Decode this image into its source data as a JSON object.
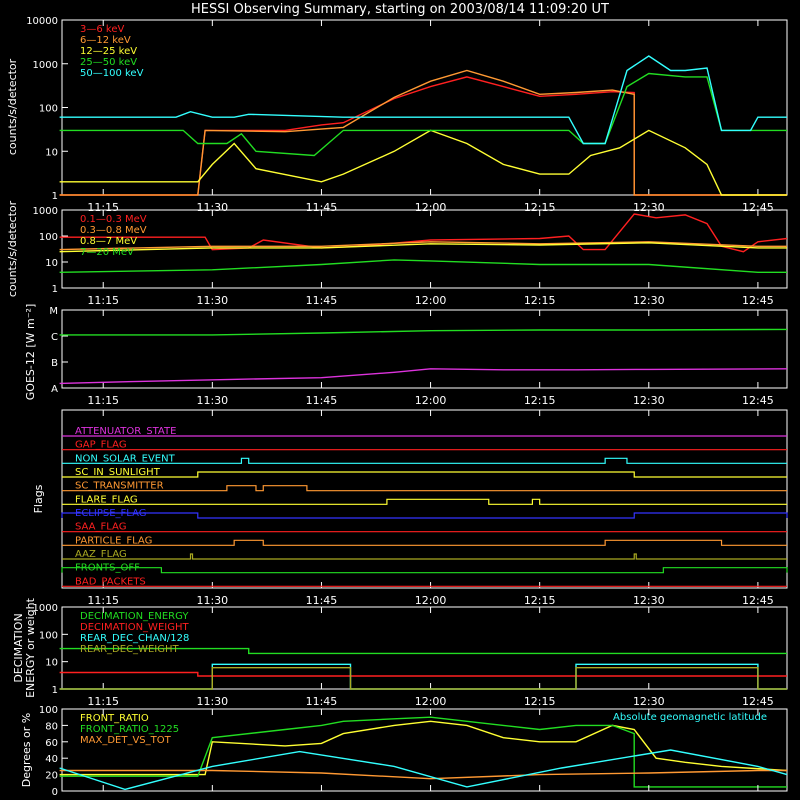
{
  "title": "HESSI Observing Summary, starting on 2003/08/14 11:09:20 UT",
  "x_ticks": [
    "11:15",
    "11:30",
    "11:45",
    "12:00",
    "12:15",
    "12:30",
    "12:45"
  ],
  "colors": {
    "background": "#000000",
    "axes": "#ffffff",
    "red": "#ff2020",
    "orange": "#ff9933",
    "yellow": "#ffff33",
    "green": "#22dd22",
    "cyan": "#33ffff",
    "magenta": "#dd33dd",
    "blue": "#3333ff",
    "olive": "#aaaa22",
    "brown": "#cc7722"
  },
  "chart_data": [
    {
      "id": "counts_lo",
      "type": "line",
      "ylabel": "counts/s/detector",
      "yscale": "log",
      "ylim": [
        1,
        10000
      ],
      "yticks": [
        "1",
        "10",
        "100",
        "1000",
        "10000"
      ],
      "xlim": [
        "11:09:20",
        "12:49:00"
      ],
      "series": [
        {
          "name": "3—6 keV",
          "color": "#ff2020",
          "x": [
            "11:09",
            "11:28",
            "11:29",
            "11:40",
            "11:45",
            "11:48",
            "11:55",
            "12:00",
            "12:05",
            "12:10",
            "12:15",
            "12:20",
            "12:25",
            "12:28",
            "12:28",
            "12:49"
          ],
          "values": [
            1,
            1,
            30,
            30,
            40,
            45,
            160,
            300,
            500,
            300,
            180,
            200,
            230,
            220,
            1,
            1
          ]
        },
        {
          "name": "6—12 keV",
          "color": "#ff9933",
          "x": [
            "11:09",
            "11:28",
            "11:29",
            "11:40",
            "11:48",
            "11:55",
            "12:00",
            "12:05",
            "12:10",
            "12:15",
            "12:20",
            "12:25",
            "12:28",
            "12:28",
            "12:49"
          ],
          "values": [
            1,
            1,
            30,
            28,
            35,
            170,
            400,
            700,
            400,
            200,
            220,
            250,
            200,
            1,
            1
          ]
        },
        {
          "name": "12—25 keV",
          "color": "#ffff33",
          "x": [
            "11:09",
            "11:20",
            "11:28",
            "11:30",
            "11:33",
            "11:36",
            "11:45",
            "11:48",
            "11:55",
            "12:00",
            "12:05",
            "12:10",
            "12:15",
            "12:19",
            "12:22",
            "12:26",
            "12:30",
            "12:35",
            "12:38",
            "12:40",
            "12:49"
          ],
          "values": [
            2,
            2,
            2,
            5,
            15,
            4,
            2,
            3,
            10,
            30,
            15,
            5,
            3,
            3,
            8,
            12,
            30,
            12,
            5,
            1,
            1
          ]
        },
        {
          "name": "25—50 keV",
          "color": "#22dd22",
          "x": [
            "11:09",
            "11:26",
            "11:28",
            "11:32",
            "11:34",
            "11:36",
            "11:44",
            "11:48",
            "12:00",
            "12:15",
            "12:19",
            "12:21",
            "12:24",
            "12:27",
            "12:30",
            "12:35",
            "12:38",
            "12:40",
            "12:49"
          ],
          "values": [
            30,
            30,
            15,
            15,
            25,
            10,
            8,
            30,
            30,
            30,
            30,
            15,
            15,
            300,
            600,
            500,
            500,
            30,
            30
          ]
        },
        {
          "name": "50—100 keV",
          "color": "#33ffff",
          "x": [
            "11:09",
            "11:25",
            "11:27",
            "11:30",
            "11:33",
            "11:35",
            "11:48",
            "11:49",
            "12:00",
            "12:15",
            "12:19",
            "12:21",
            "12:24",
            "12:27",
            "12:30",
            "12:33",
            "12:35",
            "12:38",
            "12:40",
            "12:44",
            "12:45",
            "12:49"
          ],
          "values": [
            60,
            60,
            80,
            60,
            60,
            70,
            60,
            60,
            60,
            60,
            60,
            15,
            15,
            700,
            1500,
            700,
            700,
            800,
            30,
            30,
            60,
            60
          ]
        }
      ]
    },
    {
      "id": "counts_hi",
      "type": "line",
      "ylabel": "counts/s/detector",
      "yscale": "log",
      "ylim": [
        1,
        1000
      ],
      "yticks": [
        "1",
        "10",
        "100",
        "1000"
      ],
      "series": [
        {
          "name": "0.1—0.3 MeV",
          "color": "#ff2020",
          "x": [
            "11:09",
            "11:29",
            "11:30",
            "11:35",
            "11:37",
            "11:45",
            "11:50",
            "12:00",
            "12:15",
            "12:19",
            "12:21",
            "12:24",
            "12:28",
            "12:31",
            "12:35",
            "12:38",
            "12:40",
            "12:43",
            "12:45",
            "12:49"
          ],
          "values": [
            90,
            90,
            30,
            35,
            70,
            35,
            40,
            70,
            80,
            100,
            30,
            30,
            700,
            500,
            650,
            300,
            40,
            25,
            60,
            80
          ]
        },
        {
          "name": "0.3—0.8 MeV",
          "color": "#ff9933",
          "x": [
            "11:09",
            "11:30",
            "11:45",
            "12:00",
            "12:15",
            "12:30",
            "12:45",
            "12:49"
          ],
          "values": [
            30,
            40,
            40,
            60,
            50,
            60,
            40,
            40
          ]
        },
        {
          "name": "0.8—7 MeV",
          "color": "#ffff33",
          "x": [
            "11:09",
            "11:30",
            "11:45",
            "12:00",
            "12:15",
            "12:30",
            "12:45",
            "12:49"
          ],
          "values": [
            25,
            35,
            35,
            50,
            45,
            55,
            35,
            35
          ]
        },
        {
          "name": "7—20 MeV",
          "color": "#22dd22",
          "x": [
            "11:09",
            "11:30",
            "11:45",
            "11:55",
            "12:00",
            "12:15",
            "12:30",
            "12:45",
            "12:49"
          ],
          "values": [
            4,
            5,
            8,
            12,
            11,
            8,
            8,
            4,
            4
          ]
        }
      ]
    },
    {
      "id": "goes",
      "type": "line",
      "ylabel": "GOES-12 [W m⁻²]",
      "yscale": "log",
      "ylim": [
        1e-08,
        1e-05
      ],
      "yticks": [
        "A",
        "B",
        "C",
        "M"
      ],
      "series": [
        {
          "name": "",
          "color": "#22dd22",
          "x": [
            "11:09",
            "11:30",
            "11:45",
            "12:00",
            "12:15",
            "12:30",
            "12:49"
          ],
          "values": [
            1.1e-06,
            1.1e-06,
            1.3e-06,
            1.6e-06,
            1.7e-06,
            1.7e-06,
            1.8e-06
          ]
        },
        {
          "name": "",
          "color": "#dd33dd",
          "x": [
            "11:09",
            "11:20",
            "11:35",
            "11:45",
            "11:55",
            "12:00",
            "12:10",
            "12:20",
            "12:30",
            "12:49"
          ],
          "values": [
            1.5e-08,
            1.8e-08,
            2.2e-08,
            2.5e-08,
            4e-08,
            5.5e-08,
            5e-08,
            5e-08,
            5.2e-08,
            5.5e-08
          ]
        }
      ]
    },
    {
      "id": "flags",
      "type": "line",
      "ylabel": "Flags",
      "series": [
        {
          "name": "ATTENUATOR_STATE",
          "color": "#dd33dd",
          "steps": []
        },
        {
          "name": "GAP_FLAG",
          "color": "#ff2020",
          "steps": []
        },
        {
          "name": "NON_SOLAR_EVENT",
          "color": "#33ffff",
          "steps": [
            [
              "11:34",
              "11:35"
            ],
            [
              "12:24",
              "12:27"
            ]
          ]
        },
        {
          "name": "SC_IN_SUNLIGHT",
          "color": "#ffff33",
          "steps": [
            [
              "11:28",
              "12:28"
            ]
          ]
        },
        {
          "name": "SC_TRANSMITTER",
          "color": "#ff9933",
          "steps": [
            [
              "11:32",
              "11:36"
            ],
            [
              "11:37",
              "11:43"
            ]
          ]
        },
        {
          "name": "FLARE_FLAG",
          "color": "#ffff33",
          "steps": [
            [
              "11:54",
              "12:08"
            ],
            [
              "12:14",
              "12:15"
            ]
          ]
        },
        {
          "name": "ECLIPSE_FLAG",
          "color": "#3333ff",
          "steps": [
            [
              "11:09",
              "11:28"
            ],
            [
              "12:28",
              "12:49"
            ]
          ]
        },
        {
          "name": "SAA_FLAG",
          "color": "#ff2020",
          "steps": []
        },
        {
          "name": "PARTICLE_FLAG",
          "color": "#ff9933",
          "steps": [
            [
              "11:33",
              "11:37"
            ],
            [
              "12:24",
              "12:40"
            ]
          ]
        },
        {
          "name": "AAZ_FLAG",
          "color": "#aaaa22",
          "steps": [
            [
              "11:27",
              "11:27"
            ],
            [
              "12:28",
              "12:28"
            ]
          ]
        },
        {
          "name": "FRONTS_OFF",
          "color": "#22dd22",
          "steps": [
            [
              "11:09",
              "11:23"
            ],
            [
              "12:32",
              "12:49"
            ]
          ]
        },
        {
          "name": "BAD_PACKETS",
          "color": "#ff2020",
          "steps": []
        }
      ]
    },
    {
      "id": "decimation",
      "type": "line",
      "ylabel": "DECIMATION ENERGY or weight",
      "yscale": "log",
      "ylim": [
        1,
        1000
      ],
      "yticks": [
        "1",
        "10",
        "100",
        "1000"
      ],
      "series": [
        {
          "name": "DECIMATION_ENERGY",
          "color": "#22dd22",
          "x": [
            "11:09",
            "11:35",
            "11:35",
            "12:49"
          ],
          "values": [
            30,
            30,
            20,
            20
          ]
        },
        {
          "name": "DECIMATION_WEIGHT",
          "color": "#ff2020",
          "x": [
            "11:09",
            "11:28",
            "11:28",
            "12:49"
          ],
          "values": [
            4,
            4,
            3,
            3
          ]
        },
        {
          "name": "REAR_DEC_CHAN/128",
          "color": "#33ffff",
          "x": [
            "11:09",
            "11:30",
            "11:30",
            "11:49",
            "11:49",
            "12:20",
            "12:20",
            "12:45",
            "12:45",
            "12:49"
          ],
          "values": [
            1,
            1,
            8,
            8,
            1,
            1,
            8,
            8,
            1,
            1
          ]
        },
        {
          "name": "REAR_DEC_WEIGHT",
          "color": "#aaaa22",
          "x": [
            "11:09",
            "11:30",
            "11:30",
            "11:49",
            "11:49",
            "12:20",
            "12:20",
            "12:45",
            "12:45",
            "12:49"
          ],
          "values": [
            1,
            1,
            6,
            6,
            1,
            1,
            6,
            6,
            1,
            1
          ]
        }
      ]
    },
    {
      "id": "ratios",
      "type": "line",
      "ylabel": "Degrees or %",
      "ylim": [
        0,
        100
      ],
      "yticks": [
        "0",
        "20",
        "40",
        "60",
        "80",
        "100"
      ],
      "annotation": "Absolute geomagnetic latitude",
      "series": [
        {
          "name": "FRONT_RATIO",
          "color": "#ffff33",
          "x": [
            "11:09",
            "11:29",
            "11:30",
            "11:40",
            "11:45",
            "11:48",
            "11:55",
            "12:00",
            "12:05",
            "12:10",
            "12:15",
            "12:20",
            "12:25",
            "12:28",
            "12:31",
            "12:35",
            "12:40",
            "12:49"
          ],
          "values": [
            20,
            20,
            60,
            55,
            58,
            70,
            80,
            85,
            80,
            65,
            60,
            60,
            80,
            75,
            40,
            35,
            30,
            25
          ]
        },
        {
          "name": "FRONT_RATIO_1225",
          "color": "#22dd22",
          "x": [
            "11:09",
            "11:28",
            "11:30",
            "11:40",
            "11:45",
            "11:48",
            "11:55",
            "12:00",
            "12:05",
            "12:10",
            "12:15",
            "12:20",
            "12:25",
            "12:28",
            "12:28",
            "12:49"
          ],
          "values": [
            18,
            18,
            65,
            75,
            80,
            85,
            88,
            90,
            85,
            80,
            75,
            80,
            80,
            70,
            5,
            5
          ]
        },
        {
          "name": "MAX_DET_VS_TOT",
          "color": "#ff9933",
          "x": [
            "11:09",
            "11:30",
            "11:45",
            "12:00",
            "12:15",
            "12:30",
            "12:45",
            "12:49"
          ],
          "values": [
            25,
            25,
            22,
            15,
            20,
            22,
            25,
            25
          ]
        },
        {
          "name": "",
          "color": "#33ffff",
          "x": [
            "11:09",
            "11:18",
            "11:30",
            "11:42",
            "11:55",
            "12:05",
            "12:18",
            "12:33",
            "12:45",
            "12:49"
          ],
          "values": [
            28,
            2,
            30,
            48,
            30,
            5,
            28,
            50,
            30,
            20
          ]
        }
      ]
    }
  ]
}
